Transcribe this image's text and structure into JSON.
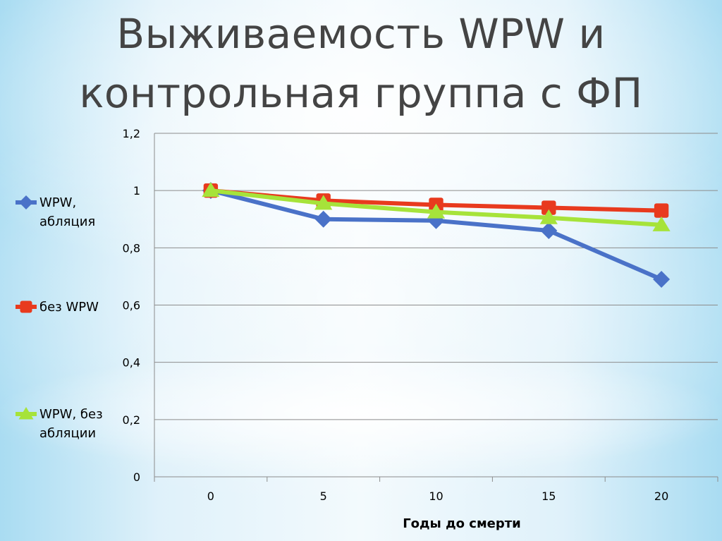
{
  "slide": {
    "title_line1": "Выживаемость WPW и",
    "title_line2": "контрольная группа с ФП"
  },
  "chart_data": {
    "type": "line",
    "title": "",
    "xlabel": "Годы до смерти",
    "ylabel": "",
    "categories": [
      "0",
      "5",
      "10",
      "15",
      "20"
    ],
    "y_ticks": [
      "0",
      "0,2",
      "0,4",
      "0,6",
      "0,8",
      "1",
      "1,2"
    ],
    "ylim": [
      0,
      1.2
    ],
    "grid": "horizontal",
    "legend_position": "left",
    "series": [
      {
        "name_lines": [
          "WPW,",
          "абляция"
        ],
        "values": [
          1.0,
          0.9,
          0.895,
          0.86,
          0.69
        ],
        "color": "#4a72c8",
        "marker": "diamond"
      },
      {
        "name_lines": [
          "без WPW"
        ],
        "values": [
          1.0,
          0.965,
          0.95,
          0.94,
          0.93
        ],
        "color": "#e83a1e",
        "marker": "square"
      },
      {
        "name_lines": [
          "WPW, без",
          "абляции"
        ],
        "values": [
          1.0,
          0.955,
          0.925,
          0.905,
          0.88
        ],
        "color": "#a6e33a",
        "marker": "triangle"
      }
    ]
  }
}
